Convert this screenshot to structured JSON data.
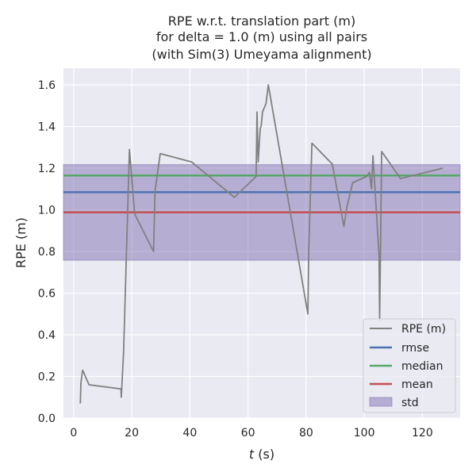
{
  "chart_data": {
    "type": "line",
    "title": [
      "RPE w.r.t. translation part (m)",
      "for delta = 1.0 (m) using all pairs",
      "(with Sim(3) Umeyama alignment)"
    ],
    "xlabel": "t (s)",
    "xlabel_italic": "t",
    "xlabel_rest": " (s)",
    "ylabel": "RPE (m)",
    "xlim": [
      -3.5,
      133
    ],
    "ylim": [
      0,
      1.68
    ],
    "xticks": [
      0,
      20,
      40,
      60,
      80,
      100,
      120
    ],
    "yticks": [
      0.0,
      0.2,
      0.4,
      0.6,
      0.8,
      1.0,
      1.2,
      1.4,
      1.6
    ],
    "xtick_labels": [
      "0",
      "20",
      "40",
      "60",
      "80",
      "100",
      "120"
    ],
    "ytick_labels": [
      "0.0",
      "0.2",
      "0.4",
      "0.6",
      "0.8",
      "1.0",
      "1.2",
      "1.4",
      "1.6"
    ],
    "grid": true,
    "legend_position": "lower-right",
    "colors": {
      "background": "#eaeaf2",
      "grid": "#ffffff",
      "rpe": "#808080",
      "rmse": "#4c72b0",
      "median": "#55a868",
      "mean": "#c44e52",
      "std": "#8172b2"
    },
    "series": [
      {
        "name": "RPE (m)",
        "x": [
          2.3,
          2.5,
          3.1,
          5.3,
          16.3,
          16.4,
          17.2,
          19.2,
          21.0,
          27.5,
          28.0,
          29.8,
          40.6,
          55.3,
          62.8,
          63.1,
          63.5,
          64.2,
          64.5,
          65.0,
          66.2,
          67.0,
          80.6,
          80.9,
          82.0,
          89.0,
          93.0,
          94.0,
          96.0,
          100.8,
          101.8,
          102.5,
          103.0,
          105.1,
          105.3,
          106.0,
          112.5,
          127.0
        ],
        "y": [
          0.07,
          0.17,
          0.23,
          0.16,
          0.14,
          0.1,
          0.32,
          1.29,
          0.98,
          0.8,
          1.09,
          1.27,
          1.23,
          1.06,
          1.16,
          1.47,
          1.23,
          1.39,
          1.4,
          1.47,
          1.51,
          1.6,
          0.5,
          0.8,
          1.32,
          1.22,
          0.92,
          1.01,
          1.13,
          1.16,
          1.18,
          1.1,
          1.26,
          0.78,
          0.47,
          1.28,
          1.15,
          1.2
        ]
      },
      {
        "name": "rmse",
        "value": 1.085
      },
      {
        "name": "median",
        "value": 1.165
      },
      {
        "name": "mean",
        "value": 0.988
      },
      {
        "name": "std",
        "range": [
          0.758,
          1.217
        ]
      }
    ]
  }
}
